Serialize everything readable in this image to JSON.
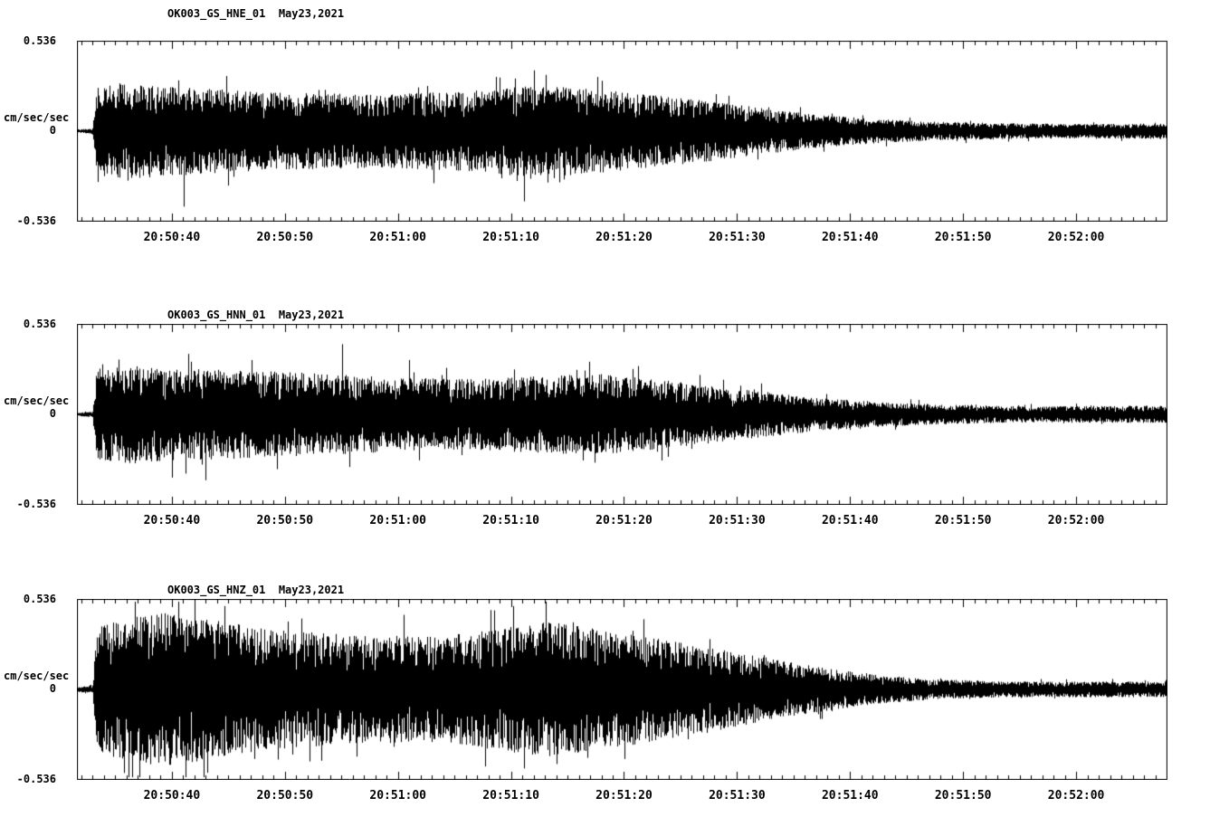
{
  "page": {
    "background": "#ffffff",
    "trace_color": "#000000"
  },
  "chart_data": [
    {
      "type": "line",
      "title": "OK003_GS_HNE_01  May23,2021",
      "ylabel": "cm/sec/sec",
      "ylim": [
        -0.536,
        0.536
      ],
      "ytick_labels": [
        "0.536",
        "0",
        "-0.536"
      ],
      "x_range_s": [
        31.6,
        128
      ],
      "grid": false,
      "legend": "none",
      "xticks": [
        {
          "s": 40,
          "label": "20:50:40"
        },
        {
          "s": 50,
          "label": "20:50:50"
        },
        {
          "s": 60,
          "label": "20:51:00"
        },
        {
          "s": 70,
          "label": "20:51:10"
        },
        {
          "s": 80,
          "label": "20:51:20"
        },
        {
          "s": 90,
          "label": "20:51:30"
        },
        {
          "s": 100,
          "label": "20:51:40"
        },
        {
          "s": 110,
          "label": "20:51:50"
        },
        {
          "s": 120,
          "label": "20:52:00"
        }
      ],
      "minor_tick_s": 1,
      "seed": 101,
      "envelope": [
        [
          0,
          0.02
        ],
        [
          0.014,
          0.03
        ],
        [
          0.018,
          0.5
        ],
        [
          0.04,
          0.55
        ],
        [
          0.1,
          0.5
        ],
        [
          0.18,
          0.44
        ],
        [
          0.28,
          0.42
        ],
        [
          0.36,
          0.46
        ],
        [
          0.41,
          0.52
        ],
        [
          0.46,
          0.5
        ],
        [
          0.52,
          0.42
        ],
        [
          0.57,
          0.36
        ],
        [
          0.62,
          0.28
        ],
        [
          0.67,
          0.2
        ],
        [
          0.72,
          0.15
        ],
        [
          0.78,
          0.11
        ],
        [
          0.86,
          0.09
        ],
        [
          0.93,
          0.08
        ],
        [
          1,
          0.09
        ]
      ],
      "spikes": [
        [
          0.093,
          0.58
        ],
        [
          0.098,
          -0.86
        ],
        [
          0.139,
          -0.62
        ],
        [
          0.402,
          0.6
        ],
        [
          0.41,
          -0.8
        ],
        [
          0.447,
          -0.55
        ]
      ]
    },
    {
      "type": "line",
      "title": "OK003_GS_HNN_01  May23,2021",
      "ylabel": "cm/sec/sec",
      "ylim": [
        -0.536,
        0.536
      ],
      "ytick_labels": [
        "0.536",
        "0",
        "-0.536"
      ],
      "x_range_s": [
        31.6,
        128
      ],
      "grid": false,
      "legend": "none",
      "xticks": [
        {
          "s": 40,
          "label": "20:50:40"
        },
        {
          "s": 50,
          "label": "20:50:50"
        },
        {
          "s": 60,
          "label": "20:51:00"
        },
        {
          "s": 70,
          "label": "20:51:10"
        },
        {
          "s": 80,
          "label": "20:51:20"
        },
        {
          "s": 90,
          "label": "20:51:30"
        },
        {
          "s": 100,
          "label": "20:51:40"
        },
        {
          "s": 110,
          "label": "20:51:50"
        },
        {
          "s": 120,
          "label": "20:52:00"
        }
      ],
      "minor_tick_s": 1,
      "seed": 202,
      "envelope": [
        [
          0,
          0.02
        ],
        [
          0.014,
          0.03
        ],
        [
          0.018,
          0.52
        ],
        [
          0.05,
          0.56
        ],
        [
          0.1,
          0.52
        ],
        [
          0.16,
          0.5
        ],
        [
          0.24,
          0.46
        ],
        [
          0.3,
          0.42
        ],
        [
          0.36,
          0.4
        ],
        [
          0.42,
          0.44
        ],
        [
          0.48,
          0.46
        ],
        [
          0.53,
          0.4
        ],
        [
          0.58,
          0.33
        ],
        [
          0.63,
          0.26
        ],
        [
          0.68,
          0.19
        ],
        [
          0.74,
          0.14
        ],
        [
          0.8,
          0.11
        ],
        [
          0.88,
          0.09
        ],
        [
          1,
          0.1
        ]
      ],
      "spikes": [
        [
          0.087,
          -0.72
        ],
        [
          0.105,
          0.6
        ],
        [
          0.118,
          -0.75
        ],
        [
          0.16,
          0.62
        ],
        [
          0.243,
          0.8
        ],
        [
          0.25,
          -0.6
        ],
        [
          0.305,
          0.62
        ],
        [
          0.47,
          0.6
        ],
        [
          0.475,
          -0.55
        ]
      ]
    },
    {
      "type": "line",
      "title": "OK003_GS_HNZ_01  May23,2021",
      "ylabel": "cm/sec/sec",
      "ylim": [
        -0.536,
        0.536
      ],
      "ytick_labels": [
        "0.536",
        "0",
        "-0.536"
      ],
      "x_range_s": [
        31.6,
        128
      ],
      "grid": false,
      "legend": "none",
      "xticks": [
        {
          "s": 40,
          "label": "20:50:40"
        },
        {
          "s": 50,
          "label": "20:50:50"
        },
        {
          "s": 60,
          "label": "20:51:00"
        },
        {
          "s": 70,
          "label": "20:51:10"
        },
        {
          "s": 80,
          "label": "20:51:20"
        },
        {
          "s": 90,
          "label": "20:51:30"
        },
        {
          "s": 100,
          "label": "20:51:40"
        },
        {
          "s": 110,
          "label": "20:51:50"
        },
        {
          "s": 120,
          "label": "20:52:00"
        }
      ],
      "minor_tick_s": 1,
      "seed": 303,
      "envelope": [
        [
          0,
          0.03
        ],
        [
          0.014,
          0.04
        ],
        [
          0.018,
          0.7
        ],
        [
          0.04,
          0.8
        ],
        [
          0.08,
          0.88
        ],
        [
          0.12,
          0.8
        ],
        [
          0.18,
          0.68
        ],
        [
          0.26,
          0.62
        ],
        [
          0.33,
          0.6
        ],
        [
          0.38,
          0.68
        ],
        [
          0.43,
          0.78
        ],
        [
          0.47,
          0.7
        ],
        [
          0.52,
          0.62
        ],
        [
          0.56,
          0.52
        ],
        [
          0.61,
          0.42
        ],
        [
          0.65,
          0.32
        ],
        [
          0.69,
          0.24
        ],
        [
          0.73,
          0.17
        ],
        [
          0.78,
          0.12
        ],
        [
          0.85,
          0.09
        ],
        [
          1,
          0.09
        ]
      ],
      "spikes": [
        [
          0.093,
          1.0
        ],
        [
          0.1,
          -1.0
        ],
        [
          0.108,
          1.0
        ],
        [
          0.12,
          -0.95
        ],
        [
          0.135,
          0.95
        ],
        [
          0.3,
          0.85
        ],
        [
          0.4,
          0.95
        ],
        [
          0.41,
          -0.9
        ],
        [
          0.43,
          1.0
        ],
        [
          0.44,
          -0.85
        ],
        [
          0.52,
          0.8
        ]
      ]
    }
  ]
}
